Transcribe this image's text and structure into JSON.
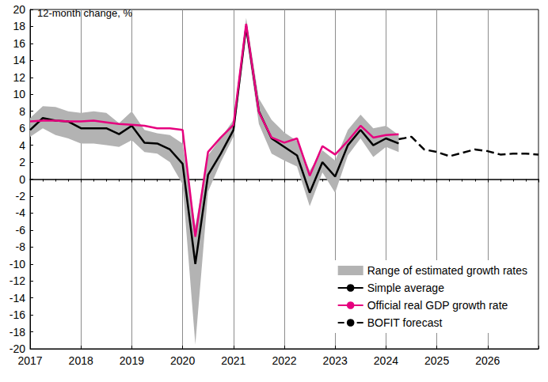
{
  "chart_data": {
    "type": "line",
    "y_label": "12-month change, %",
    "x": [
      2017,
      2017.25,
      2017.5,
      2017.75,
      2018,
      2018.25,
      2018.5,
      2018.75,
      2019,
      2019.25,
      2019.5,
      2019.75,
      2020,
      2020.25,
      2020.5,
      2020.75,
      2021,
      2021.25,
      2021.5,
      2021.75,
      2022,
      2022.25,
      2022.5,
      2022.75,
      2023,
      2023.25,
      2023.5,
      2023.75,
      2024,
      2024.25,
      2024.5,
      2024.75,
      2025,
      2025.25,
      2025.5,
      2025.75,
      2026,
      2026.25,
      2026.5,
      2026.75,
      2027
    ],
    "xlim": [
      2017,
      2027
    ],
    "xticks": [
      2017,
      2018,
      2019,
      2020,
      2021,
      2022,
      2023,
      2024,
      2025,
      2026
    ],
    "ylim": [
      -20,
      20
    ],
    "yticks": [
      -20,
      -18,
      -16,
      -14,
      -12,
      -10,
      -8,
      -6,
      -4,
      -2,
      0,
      2,
      4,
      6,
      8,
      10,
      12,
      14,
      16,
      18,
      20
    ],
    "grid": true,
    "legend": "lower right",
    "series": [
      {
        "name": "Range of estimated growth rates",
        "type": "range",
        "color": "#b3b3b3",
        "low": [
          5.0,
          6.0,
          5.2,
          4.8,
          4.2,
          4.2,
          4.0,
          3.8,
          4.6,
          3.2,
          3.0,
          2.0,
          -0.6,
          -19.5,
          -1.5,
          2.0,
          5.0,
          17.0,
          6.5,
          3.0,
          2.2,
          1.5,
          -3.2,
          0.8,
          -1.6,
          2.8,
          4.8,
          2.6,
          3.8,
          3.2,
          null,
          null,
          null,
          null,
          null,
          null,
          null,
          null,
          null,
          null,
          null
        ],
        "high": [
          7.2,
          8.6,
          8.5,
          8.0,
          7.8,
          8.0,
          7.8,
          6.6,
          8.0,
          5.8,
          5.4,
          5.2,
          4.2,
          -5.5,
          2.8,
          4.8,
          7.0,
          19.0,
          9.5,
          7.0,
          5.5,
          4.5,
          1.0,
          3.4,
          2.2,
          5.8,
          7.6,
          6.0,
          6.3,
          5.2,
          null,
          null,
          null,
          null,
          null,
          null,
          null,
          null,
          null,
          null,
          null
        ]
      },
      {
        "name": "Simple average",
        "type": "line",
        "color": "#000000",
        "line_style": "solid",
        "values": [
          5.8,
          7.2,
          6.9,
          6.8,
          6.0,
          6.0,
          6.0,
          5.3,
          6.3,
          4.3,
          4.2,
          3.5,
          1.8,
          -10.0,
          0.5,
          3.0,
          5.8,
          18.0,
          8.0,
          4.8,
          3.8,
          2.8,
          -1.6,
          2.0,
          0.3,
          4.0,
          5.8,
          4.0,
          4.8,
          4.2,
          null,
          null,
          null,
          null,
          null,
          null,
          null,
          null,
          null,
          null,
          null
        ]
      },
      {
        "name": "Official real GDP growth rate",
        "type": "line",
        "color": "#e6007e",
        "line_style": "solid",
        "values": [
          6.8,
          6.9,
          6.9,
          6.8,
          6.8,
          6.9,
          6.7,
          6.5,
          6.4,
          6.3,
          6.0,
          6.0,
          5.8,
          -6.8,
          3.2,
          4.9,
          6.4,
          18.3,
          7.9,
          4.9,
          4.3,
          4.8,
          0.4,
          3.9,
          2.9,
          4.5,
          6.3,
          4.9,
          5.2,
          5.3,
          null,
          null,
          null,
          null,
          null,
          null,
          null,
          null,
          null,
          null,
          null
        ]
      },
      {
        "name": "BOFIT forecast",
        "type": "line",
        "color": "#000000",
        "line_style": "dashed",
        "values": [
          null,
          null,
          null,
          null,
          null,
          null,
          null,
          null,
          null,
          null,
          null,
          null,
          null,
          null,
          null,
          null,
          null,
          null,
          null,
          null,
          null,
          null,
          null,
          null,
          null,
          null,
          null,
          null,
          null,
          4.7,
          5.0,
          3.5,
          3.2,
          2.7,
          3.1,
          3.5,
          3.3,
          2.9,
          3.0,
          3.0,
          2.9
        ]
      }
    ]
  }
}
